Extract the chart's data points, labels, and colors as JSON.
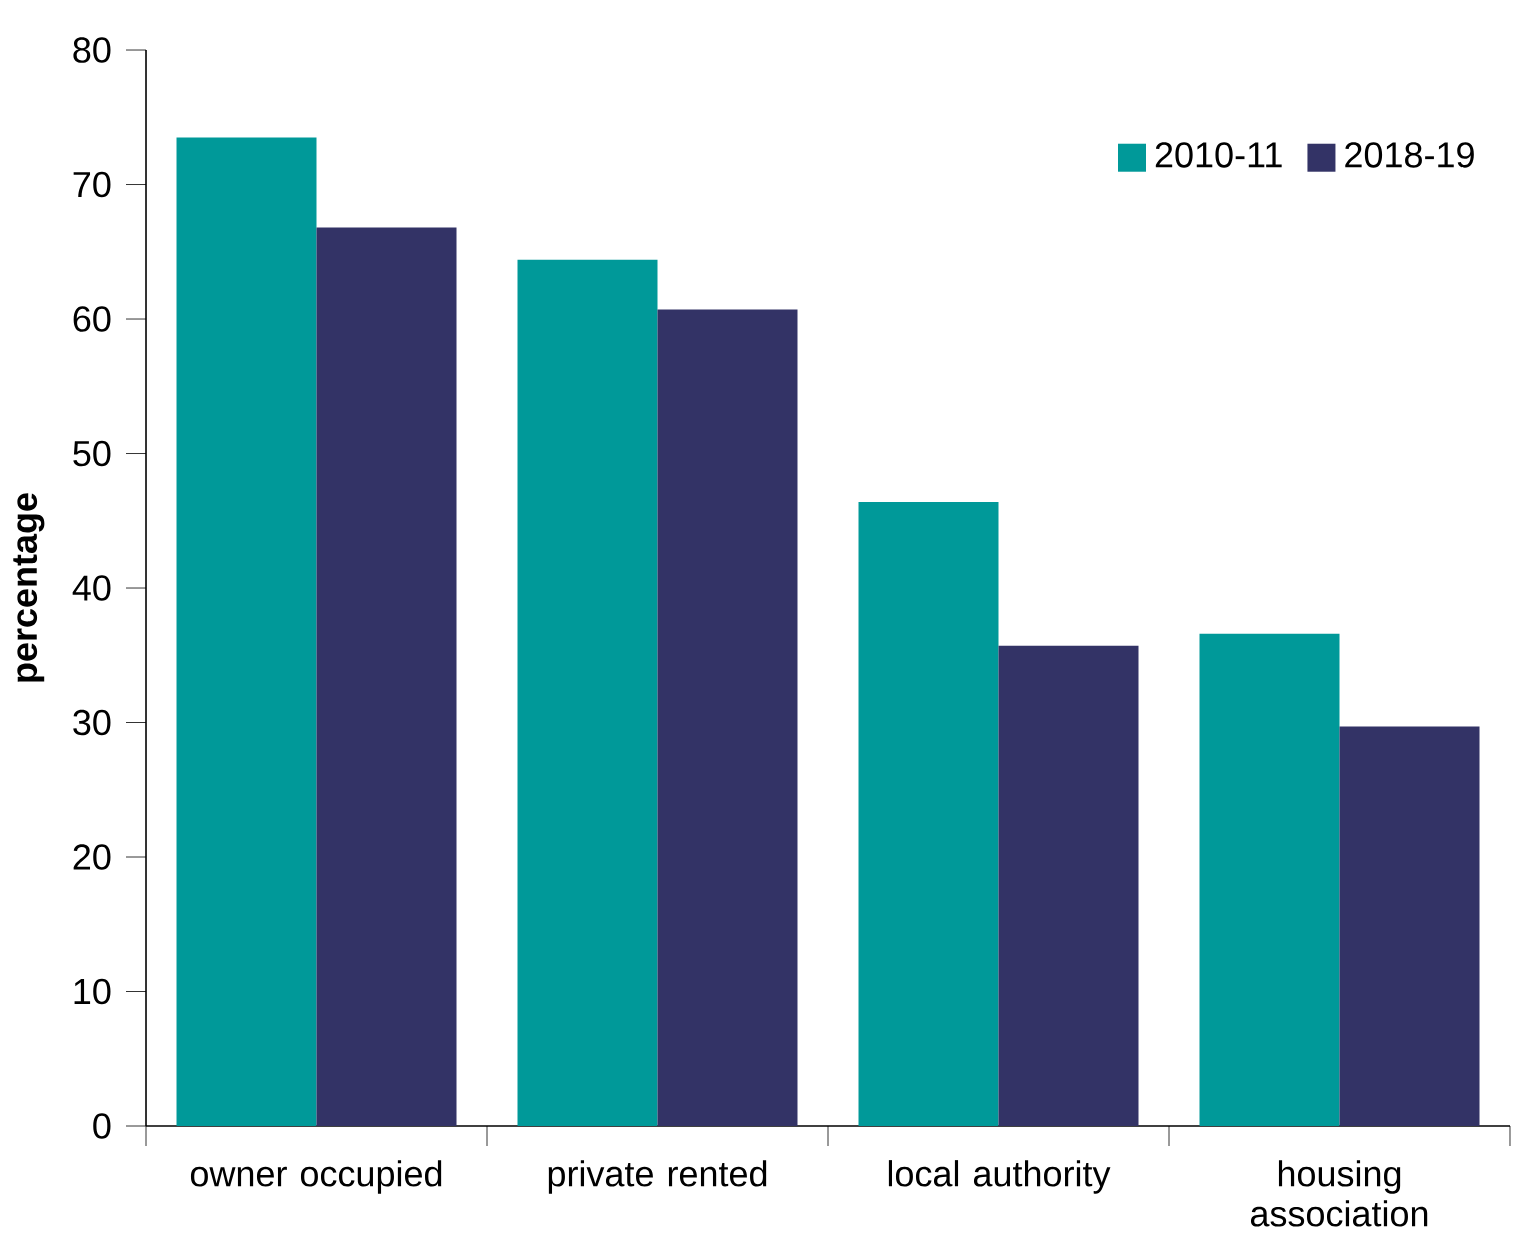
{
  "chart_data": {
    "type": "bar",
    "ylabel": "percentage",
    "categories": [
      "owner occupied",
      "private rented",
      "local authority",
      "housing association"
    ],
    "series": [
      {
        "name": "2010-11",
        "color": "#009999",
        "values": [
          73.5,
          64.4,
          46.4,
          36.6
        ]
      },
      {
        "name": "2018-19",
        "color": "#333366",
        "values": [
          66.8,
          60.7,
          35.7,
          29.7
        ]
      }
    ],
    "ylim": [
      0,
      80
    ],
    "yticks": [
      0,
      10,
      20,
      30,
      40,
      50,
      60,
      70,
      80
    ],
    "grid": false,
    "legend": "top right"
  }
}
